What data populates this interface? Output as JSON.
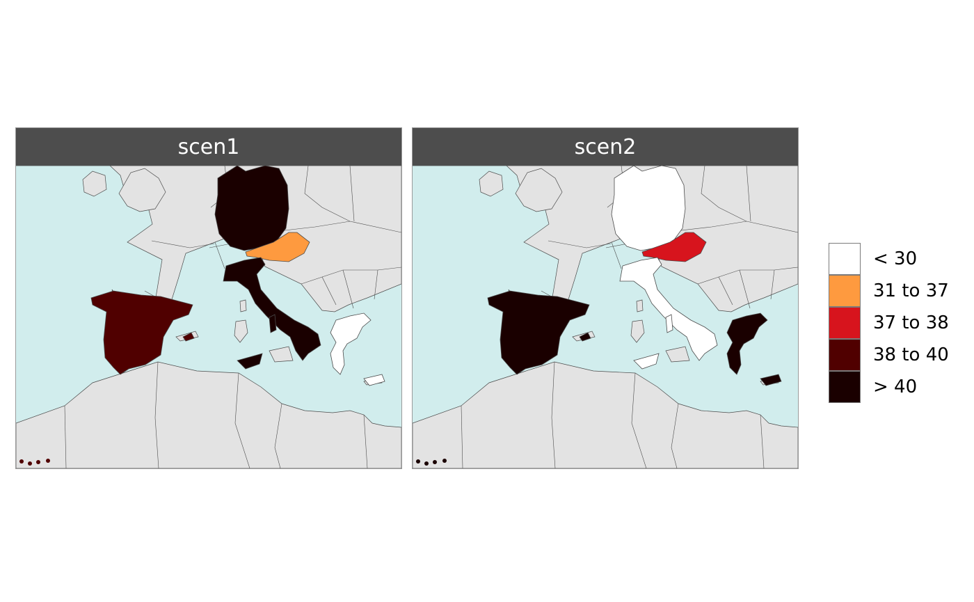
{
  "colors": {
    "sea": "#d1eded",
    "land": "#e3e3e3",
    "border": "#4a4a4a"
  },
  "legend": {
    "items": [
      {
        "label": "< 30",
        "color": "#ffffff"
      },
      {
        "label": "31 to 37",
        "color": "#fe9a3f"
      },
      {
        "label": "37 to 38",
        "color": "#d7141d"
      },
      {
        "label": "38 to 40",
        "color": "#500000"
      },
      {
        "label": "> 40",
        "color": "#1a0000"
      }
    ]
  },
  "panels": [
    {
      "title": "scen1",
      "regions": [
        {
          "name": "germany",
          "class": "> 40"
        },
        {
          "name": "austria",
          "class": "31 to 37"
        },
        {
          "name": "italy",
          "class": "> 40"
        },
        {
          "name": "spain",
          "class": "38 to 40"
        },
        {
          "name": "greece",
          "class": "< 30"
        }
      ]
    },
    {
      "title": "scen2",
      "regions": [
        {
          "name": "germany",
          "class": "< 30"
        },
        {
          "name": "austria",
          "class": "37 to 38"
        },
        {
          "name": "italy",
          "class": "< 30"
        },
        {
          "name": "spain",
          "class": "> 40"
        },
        {
          "name": "greece",
          "class": "> 40"
        }
      ]
    }
  ]
}
